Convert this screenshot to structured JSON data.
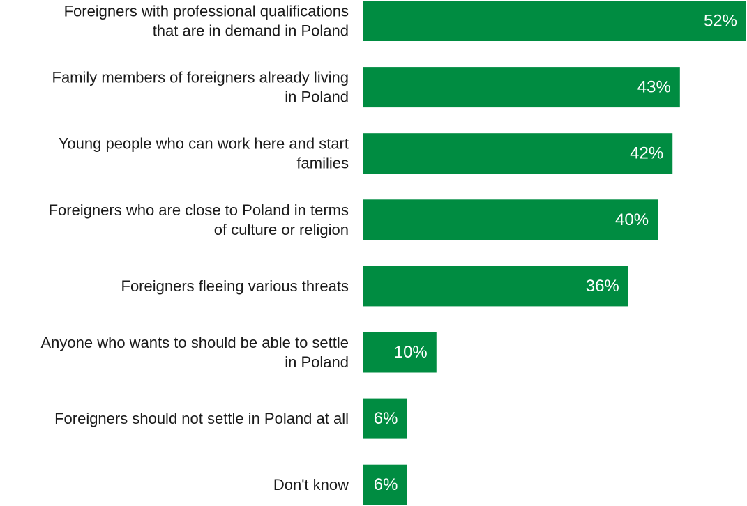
{
  "colors": {
    "bar": "#008c41",
    "bar_label": "#ffffff",
    "category_text": "#1a1a1a"
  },
  "chart_data": {
    "type": "bar",
    "orientation": "horizontal",
    "title": "",
    "xlabel": "",
    "ylabel": "",
    "grid": false,
    "legend": "none",
    "xlim": [
      0,
      52
    ],
    "value_unit": "%",
    "categories": [
      [
        "Foreigners with professional qualifications",
        "that are in demand in Poland"
      ],
      [
        "Family members of foreigners already living",
        "in Poland"
      ],
      [
        "Young people who can work here and start",
        "families"
      ],
      [
        "Foreigners who are close to Poland in terms",
        "of culture or religion"
      ],
      [
        "Foreigners fleeing various threats"
      ],
      [
        "Anyone who wants to should be able to settle",
        "in Poland"
      ],
      [
        "Foreigners should not settle in Poland at all"
      ],
      [
        "Don't know"
      ]
    ],
    "values": [
      52,
      43,
      42,
      40,
      36,
      10,
      6,
      6
    ],
    "data_labels": [
      "52%",
      "43%",
      "42%",
      "40%",
      "36%",
      "10%",
      "6%",
      "6%"
    ]
  }
}
